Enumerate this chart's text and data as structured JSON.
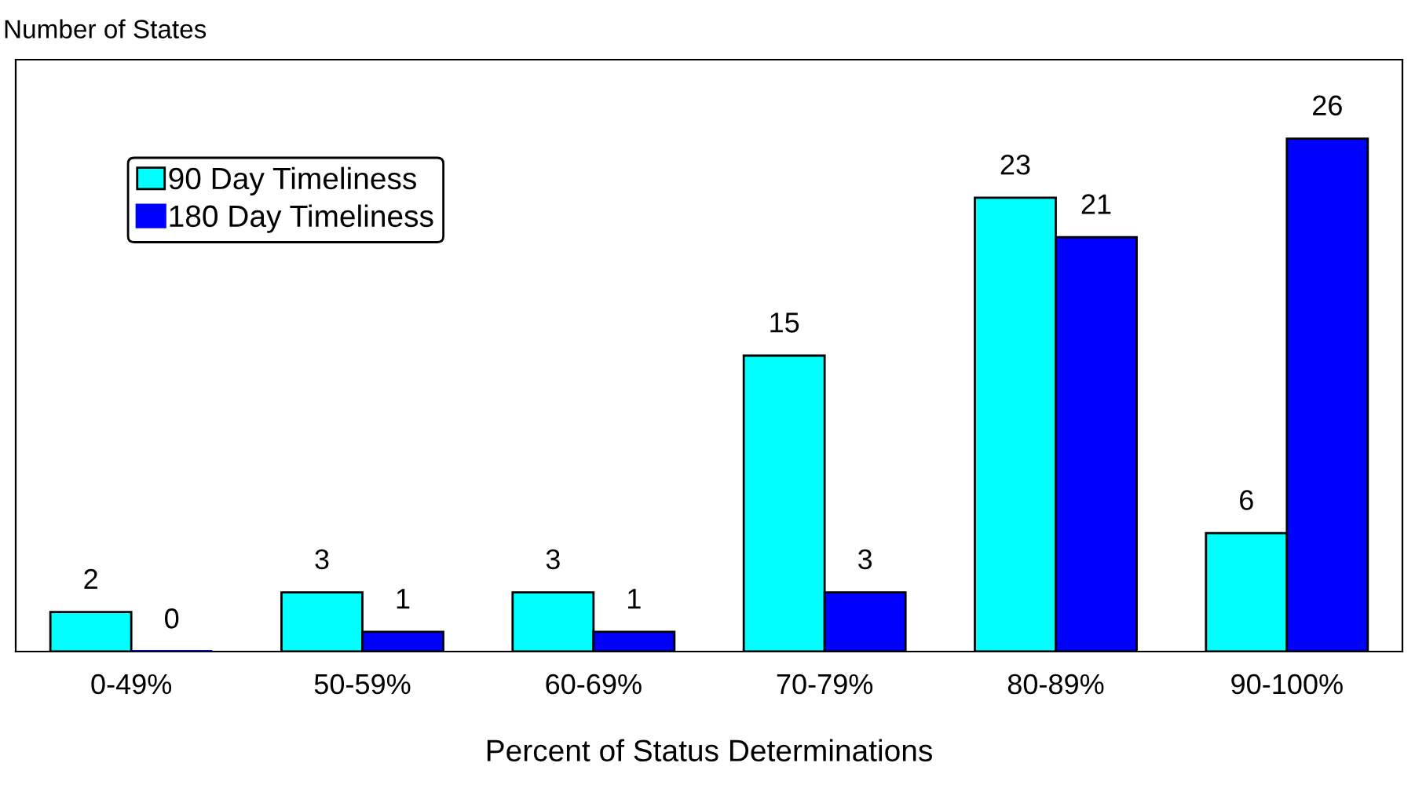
{
  "chart_data": {
    "type": "bar",
    "ylabel": "Number of States",
    "xlabel": "Percent of Status Determinations",
    "categories": [
      "0-49%",
      "50-59%",
      "60-69%",
      "70-79%",
      "80-89%",
      "90-100%"
    ],
    "series": [
      {
        "name": "90 Day Timeliness",
        "color": "#00ffff",
        "values": [
          2,
          3,
          3,
          15,
          23,
          6
        ]
      },
      {
        "name": "180 Day Timeliness",
        "color": "#0000ff",
        "values": [
          0,
          1,
          1,
          3,
          21,
          26
        ]
      }
    ],
    "ylim": [
      0,
      30
    ],
    "data_labels": true,
    "legend": "top left",
    "tick_labels": "x",
    "grid": false
  }
}
